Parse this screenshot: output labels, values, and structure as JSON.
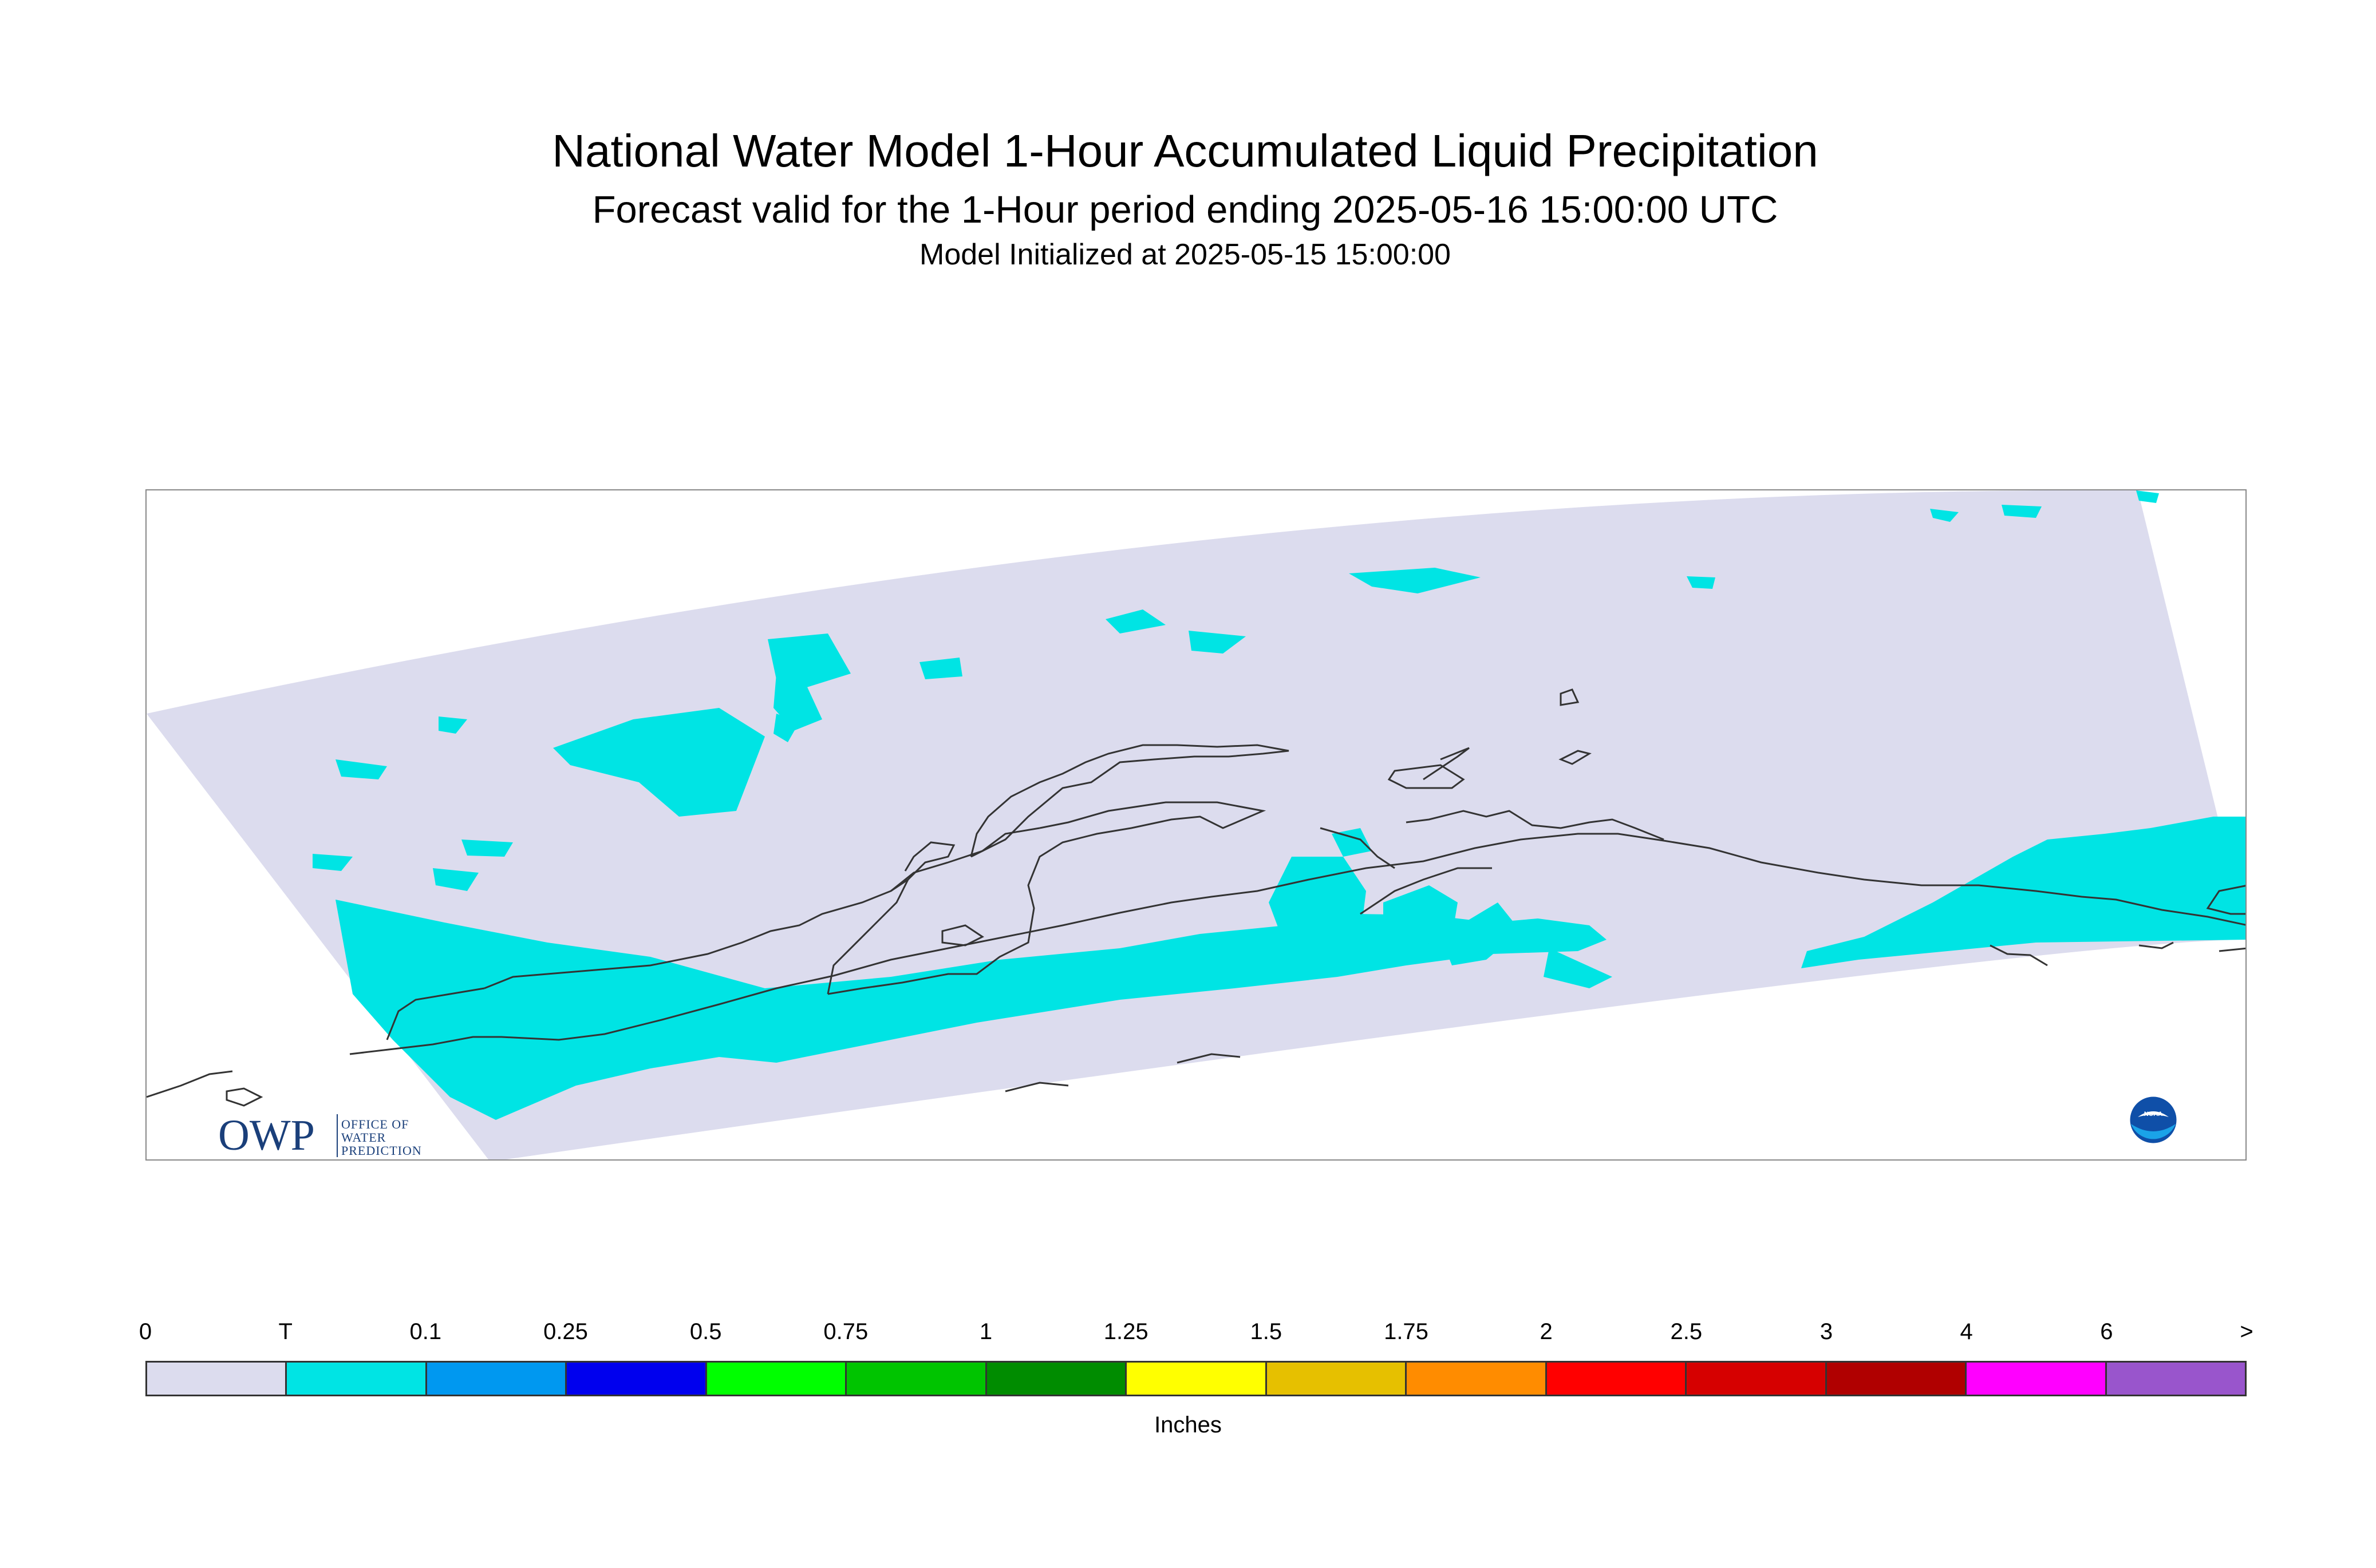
{
  "title": "National Water Model 1-Hour Accumulated Liquid Precipitation",
  "subtitle": "Forecast valid for the 1-Hour period ending 2025-05-16 15:00:00 UTC",
  "init": "Model Initialized at 2025-05-15 15:00:00",
  "logos": {
    "owp_big": "OWP",
    "owp_small_1": "OFFICE OF",
    "owp_small_2": "WATER",
    "owp_small_3": "PREDICTION",
    "noaa": "NOAA"
  },
  "colors": {
    "domain_fill": "#dcdcee",
    "trace_fill": "#00e4e4",
    "coast": "#333333"
  },
  "legend": {
    "units": "Inches",
    "labels": [
      "0",
      "T",
      "0.1",
      "0.25",
      "0.5",
      "0.75",
      "1",
      "1.25",
      "1.5",
      "1.75",
      "2",
      "2.5",
      "3",
      "4",
      "6",
      ">"
    ],
    "colors": [
      "#dcdcee",
      "#00e4e4",
      "#0098f0",
      "#0000ee",
      "#00ff00",
      "#00c400",
      "#008c00",
      "#ffff00",
      "#e6c000",
      "#ff8c00",
      "#ff0000",
      "#d60000",
      "#b00000",
      "#ff00ff",
      "#9955cc"
    ]
  }
}
